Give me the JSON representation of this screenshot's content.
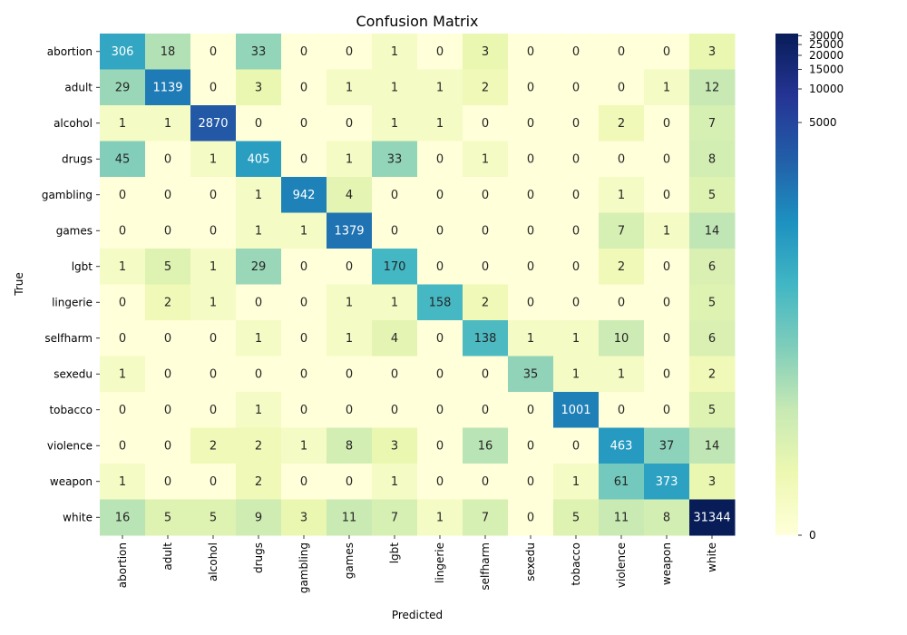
{
  "chart_data": {
    "type": "heatmap",
    "title": "Confusion Matrix",
    "xlabel": "Predicted",
    "ylabel": "True",
    "x_categories": [
      "abortion",
      "adult",
      "alcohol",
      "drugs",
      "gambling",
      "games",
      "lgbt",
      "lingerie",
      "selfharm",
      "sexedu",
      "tobacco",
      "violence",
      "weapon",
      "white"
    ],
    "y_categories": [
      "abortion",
      "adult",
      "alcohol",
      "drugs",
      "gambling",
      "games",
      "lgbt",
      "lingerie",
      "selfharm",
      "sexedu",
      "tobacco",
      "violence",
      "weapon",
      "white"
    ],
    "values": [
      [
        306,
        18,
        0,
        33,
        0,
        0,
        1,
        0,
        3,
        0,
        0,
        0,
        0,
        3
      ],
      [
        29,
        1139,
        0,
        3,
        0,
        1,
        1,
        1,
        2,
        0,
        0,
        0,
        1,
        12
      ],
      [
        1,
        1,
        2870,
        0,
        0,
        0,
        1,
        1,
        0,
        0,
        0,
        2,
        0,
        7
      ],
      [
        45,
        0,
        1,
        405,
        0,
        1,
        33,
        0,
        1,
        0,
        0,
        0,
        0,
        8
      ],
      [
        0,
        0,
        0,
        1,
        942,
        4,
        0,
        0,
        0,
        0,
        0,
        1,
        0,
        5
      ],
      [
        0,
        0,
        0,
        1,
        1,
        1379,
        0,
        0,
        0,
        0,
        0,
        7,
        1,
        14
      ],
      [
        1,
        5,
        1,
        29,
        0,
        0,
        170,
        0,
        0,
        0,
        0,
        2,
        0,
        6
      ],
      [
        0,
        2,
        1,
        0,
        0,
        1,
        1,
        158,
        2,
        0,
        0,
        0,
        0,
        5
      ],
      [
        0,
        0,
        0,
        1,
        0,
        1,
        4,
        0,
        138,
        1,
        1,
        10,
        0,
        6
      ],
      [
        1,
        0,
        0,
        0,
        0,
        0,
        0,
        0,
        0,
        35,
        1,
        1,
        0,
        2
      ],
      [
        0,
        0,
        0,
        1,
        0,
        0,
        0,
        0,
        0,
        0,
        1001,
        0,
        0,
        5
      ],
      [
        0,
        0,
        2,
        2,
        1,
        8,
        3,
        0,
        16,
        0,
        0,
        463,
        37,
        14
      ],
      [
        1,
        0,
        0,
        2,
        0,
        0,
        1,
        0,
        0,
        0,
        1,
        61,
        373,
        3
      ],
      [
        16,
        5,
        5,
        9,
        3,
        11,
        7,
        1,
        7,
        0,
        5,
        11,
        8,
        31344
      ]
    ],
    "colorbar": {
      "ticks": [
        0,
        5000,
        10000,
        15000,
        20000,
        25000,
        30000
      ],
      "colormap": "YlGnBu",
      "scale": "symlog"
    },
    "grid": false,
    "legend": "none"
  }
}
